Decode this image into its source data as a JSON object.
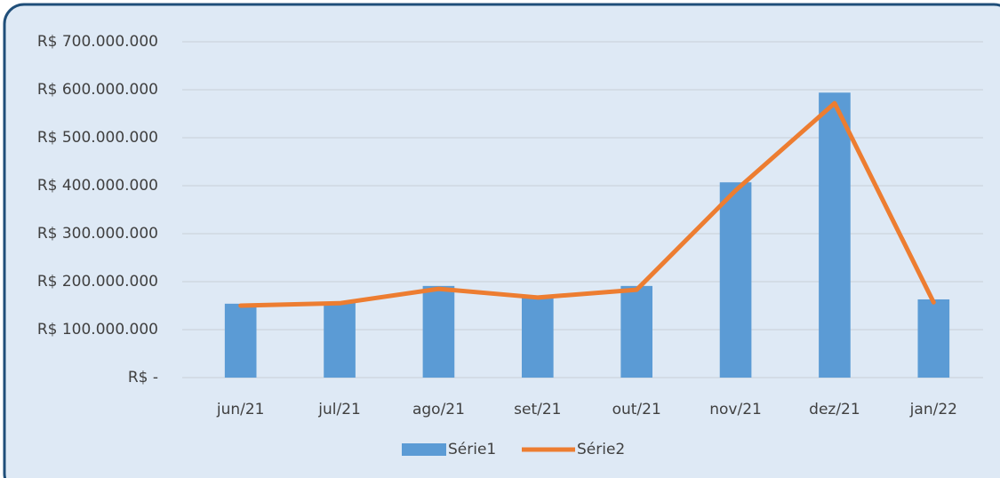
{
  "chart_data": {
    "type": "bar",
    "categories": [
      "jun/21",
      "jul/21",
      "ago/21",
      "set/21",
      "out/21",
      "nov/21",
      "dez/21",
      "jan/22"
    ],
    "series": [
      {
        "name": "Série1",
        "type": "bar",
        "color": "#5b9bd5",
        "values": [
          154000000,
          157000000,
          191000000,
          168000000,
          191000000,
          407000000,
          594000000,
          163000000
        ]
      },
      {
        "name": "Série2",
        "type": "line",
        "color": "#ed7d31",
        "values": [
          150000000,
          155000000,
          185000000,
          167000000,
          183000000,
          390000000,
          572000000,
          157000000
        ]
      }
    ],
    "ylim": [
      0,
      700000000
    ],
    "yticks": [
      {
        "value": 0,
        "label": "R$ -"
      },
      {
        "value": 100000000,
        "label": "R$ 100.000.000"
      },
      {
        "value": 200000000,
        "label": "R$ 200.000.000"
      },
      {
        "value": 300000000,
        "label": "R$ 300.000.000"
      },
      {
        "value": 400000000,
        "label": "R$ 400.000.000"
      },
      {
        "value": 500000000,
        "label": "R$ 500.000.000"
      },
      {
        "value": 600000000,
        "label": "R$ 600.000.000"
      },
      {
        "value": 700000000,
        "label": "R$ 700.000.000"
      }
    ],
    "grid": true,
    "legend": "bottom"
  }
}
